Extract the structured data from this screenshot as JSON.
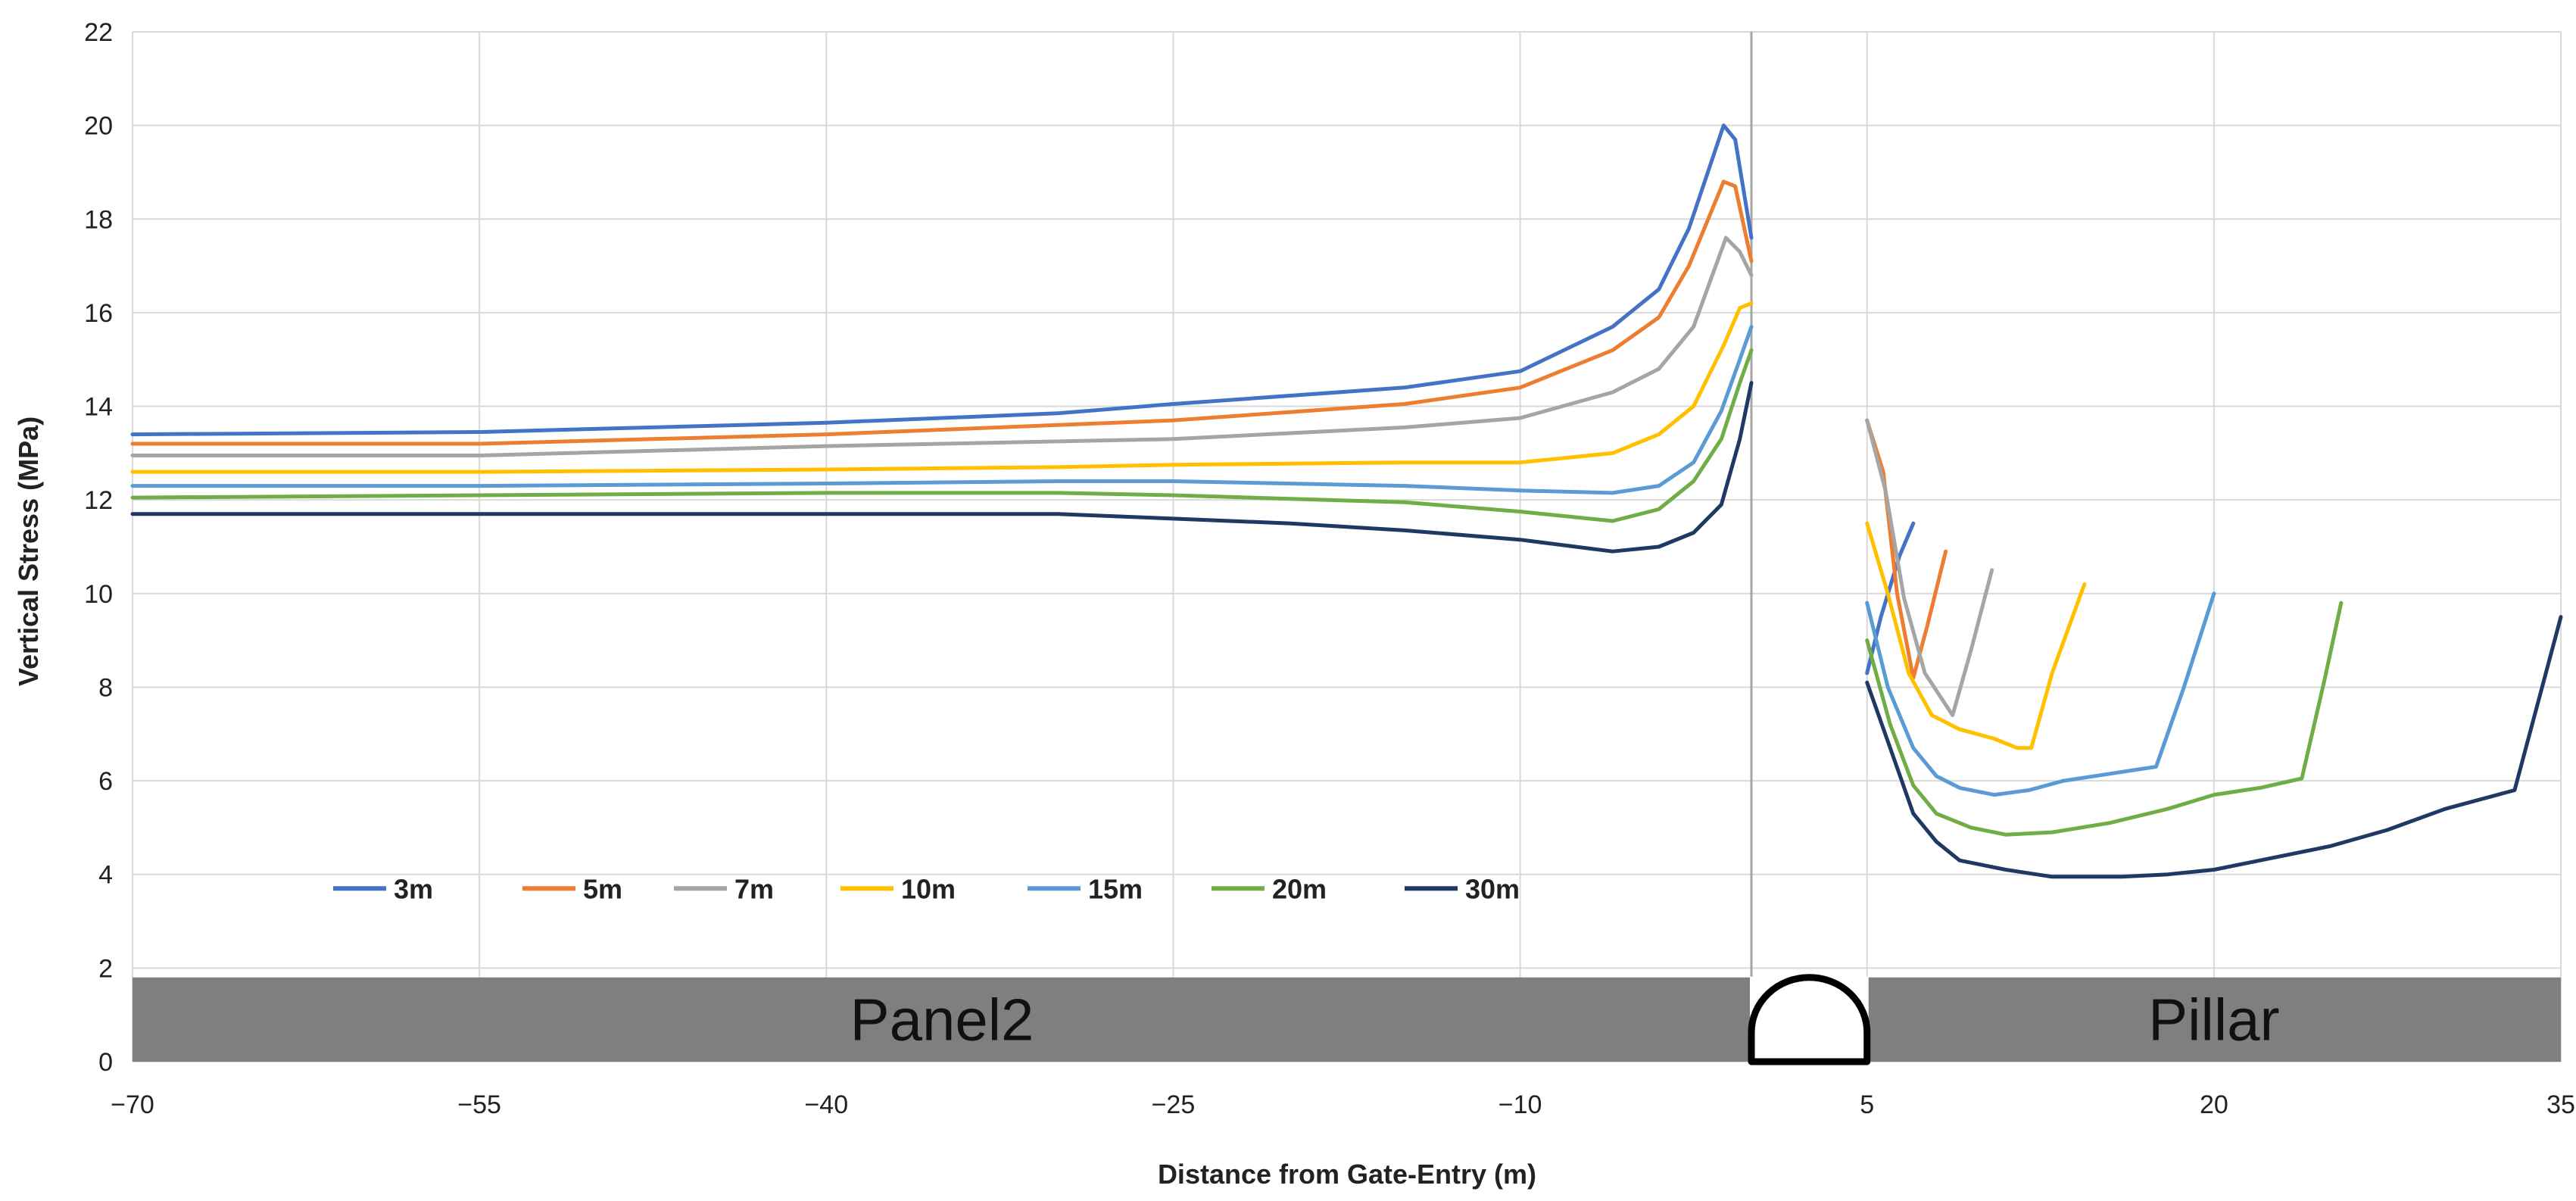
{
  "chart_data": {
    "type": "line",
    "title": "",
    "xlabel": "Distance from Gate-Entry (m)",
    "ylabel": "Vertical Stress (MPa)",
    "xlim": [
      -70,
      35
    ],
    "ylim": [
      0,
      22
    ],
    "x_ticks": [
      -70,
      -55,
      -40,
      -25,
      -10,
      5,
      20,
      35
    ],
    "x_tick_labels": [
      "−70",
      "−55",
      "−40",
      "−25",
      "−10",
      "5",
      "20",
      "35"
    ],
    "y_ticks": [
      0,
      2,
      4,
      6,
      8,
      10,
      12,
      14,
      16,
      18,
      20,
      22
    ],
    "y_tick_labels": [
      "0",
      "2",
      "4",
      "6",
      "8",
      "10",
      "12",
      "14",
      "16",
      "18",
      "20",
      "22"
    ],
    "grid": true,
    "legend_position": "bottom-left",
    "regions": [
      {
        "label": "Panel2",
        "from": -70,
        "to": 0
      },
      {
        "label": "Pillar",
        "from": 5,
        "to": 35
      }
    ],
    "gate_entry": {
      "from": 0,
      "to": 5
    },
    "series": [
      {
        "name": "3m",
        "color": "#4472C4",
        "panel": [
          [
            -70,
            13.4
          ],
          [
            -55,
            13.45
          ],
          [
            -40,
            13.65
          ],
          [
            -30,
            13.85
          ],
          [
            -25,
            14.05
          ],
          [
            -15,
            14.4
          ],
          [
            -10,
            14.75
          ],
          [
            -6,
            15.7
          ],
          [
            -4,
            16.5
          ],
          [
            -2.7,
            17.8
          ],
          [
            -1.2,
            20.0
          ],
          [
            -0.7,
            19.7
          ],
          [
            0,
            17.6
          ]
        ],
        "pillar": [
          [
            5,
            8.3
          ],
          [
            5.6,
            9.5
          ],
          [
            6.4,
            10.8
          ],
          [
            7,
            11.5
          ]
        ]
      },
      {
        "name": "5m",
        "color": "#ED7D31",
        "panel": [
          [
            -70,
            13.2
          ],
          [
            -55,
            13.2
          ],
          [
            -40,
            13.4
          ],
          [
            -30,
            13.6
          ],
          [
            -25,
            13.7
          ],
          [
            -15,
            14.05
          ],
          [
            -10,
            14.4
          ],
          [
            -6,
            15.2
          ],
          [
            -4,
            15.9
          ],
          [
            -2.7,
            17.0
          ],
          [
            -1.2,
            18.8
          ],
          [
            -0.7,
            18.7
          ],
          [
            0,
            17.1
          ]
        ],
        "pillar": [
          [
            5,
            13.7
          ],
          [
            5.7,
            12.6
          ],
          [
            6.3,
            10.0
          ],
          [
            7,
            8.2
          ],
          [
            7.6,
            9.3
          ],
          [
            8.4,
            10.9
          ]
        ]
      },
      {
        "name": "7m",
        "color": "#A5A5A5",
        "panel": [
          [
            -70,
            12.95
          ],
          [
            -55,
            12.95
          ],
          [
            -40,
            13.15
          ],
          [
            -30,
            13.25
          ],
          [
            -25,
            13.3
          ],
          [
            -15,
            13.55
          ],
          [
            -10,
            13.75
          ],
          [
            -6,
            14.3
          ],
          [
            -4,
            14.8
          ],
          [
            -2.5,
            15.7
          ],
          [
            -1.1,
            17.6
          ],
          [
            -0.5,
            17.3
          ],
          [
            0,
            16.8
          ]
        ],
        "pillar": [
          [
            5,
            13.7
          ],
          [
            5.8,
            12.2
          ],
          [
            6.6,
            9.9
          ],
          [
            7.5,
            8.3
          ],
          [
            8.7,
            7.4
          ],
          [
            9.5,
            8.8
          ],
          [
            10.4,
            10.5
          ]
        ]
      },
      {
        "name": "10m",
        "color": "#FFC000",
        "panel": [
          [
            -70,
            12.6
          ],
          [
            -55,
            12.6
          ],
          [
            -40,
            12.65
          ],
          [
            -30,
            12.7
          ],
          [
            -25,
            12.75
          ],
          [
            -15,
            12.8
          ],
          [
            -10,
            12.8
          ],
          [
            -6,
            13.0
          ],
          [
            -4,
            13.4
          ],
          [
            -2.5,
            14.0
          ],
          [
            -1.2,
            15.3
          ],
          [
            -0.5,
            16.1
          ],
          [
            0,
            16.2
          ]
        ],
        "pillar": [
          [
            5,
            11.5
          ],
          [
            5.9,
            10.0
          ],
          [
            6.8,
            8.3
          ],
          [
            7.8,
            7.4
          ],
          [
            9,
            7.1
          ],
          [
            10.5,
            6.9
          ],
          [
            11.5,
            6.7
          ],
          [
            12.1,
            6.7
          ],
          [
            13,
            8.3
          ],
          [
            14.4,
            10.2
          ]
        ]
      },
      {
        "name": "15m",
        "color": "#5B9BD5",
        "panel": [
          [
            -70,
            12.3
          ],
          [
            -55,
            12.3
          ],
          [
            -40,
            12.35
          ],
          [
            -30,
            12.4
          ],
          [
            -25,
            12.4
          ],
          [
            -15,
            12.3
          ],
          [
            -10,
            12.2
          ],
          [
            -6,
            12.15
          ],
          [
            -4,
            12.3
          ],
          [
            -2.5,
            12.8
          ],
          [
            -1.3,
            13.9
          ],
          [
            -0.5,
            15.0
          ],
          [
            0,
            15.7
          ]
        ],
        "pillar": [
          [
            5,
            9.8
          ],
          [
            5.9,
            8.0
          ],
          [
            7,
            6.7
          ],
          [
            8,
            6.1
          ],
          [
            9,
            5.85
          ],
          [
            10.5,
            5.7
          ],
          [
            12,
            5.8
          ],
          [
            13.5,
            6.0
          ],
          [
            15.5,
            6.15
          ],
          [
            17.5,
            6.3
          ],
          [
            18.7,
            8.0
          ],
          [
            20,
            10.0
          ]
        ]
      },
      {
        "name": "20m",
        "color": "#70AD47",
        "panel": [
          [
            -70,
            12.05
          ],
          [
            -55,
            12.1
          ],
          [
            -40,
            12.15
          ],
          [
            -30,
            12.15
          ],
          [
            -25,
            12.1
          ],
          [
            -15,
            11.95
          ],
          [
            -10,
            11.75
          ],
          [
            -6,
            11.55
          ],
          [
            -4,
            11.8
          ],
          [
            -2.5,
            12.4
          ],
          [
            -1.3,
            13.3
          ],
          [
            -0.5,
            14.5
          ],
          [
            0,
            15.2
          ]
        ],
        "pillar": [
          [
            5,
            9.0
          ],
          [
            6,
            7.2
          ],
          [
            7,
            5.9
          ],
          [
            8,
            5.3
          ],
          [
            9.5,
            5.0
          ],
          [
            11,
            4.85
          ],
          [
            13,
            4.9
          ],
          [
            15.5,
            5.1
          ],
          [
            18,
            5.4
          ],
          [
            20,
            5.7
          ],
          [
            22,
            5.85
          ],
          [
            23.8,
            6.05
          ],
          [
            24.8,
            8.2
          ],
          [
            25.5,
            9.8
          ]
        ]
      },
      {
        "name": "30m",
        "color": "#203864",
        "panel": [
          [
            -70,
            11.7
          ],
          [
            -55,
            11.7
          ],
          [
            -40,
            11.7
          ],
          [
            -30,
            11.7
          ],
          [
            -25,
            11.6
          ],
          [
            -20,
            11.5
          ],
          [
            -15,
            11.35
          ],
          [
            -10,
            11.15
          ],
          [
            -6,
            10.9
          ],
          [
            -4,
            11.0
          ],
          [
            -2.5,
            11.3
          ],
          [
            -1.3,
            11.9
          ],
          [
            -0.5,
            13.3
          ],
          [
            0,
            14.5
          ]
        ],
        "pillar": [
          [
            5,
            8.1
          ],
          [
            6,
            6.7
          ],
          [
            7,
            5.3
          ],
          [
            8,
            4.7
          ],
          [
            9,
            4.3
          ],
          [
            11,
            4.1
          ],
          [
            13,
            3.95
          ],
          [
            16,
            3.95
          ],
          [
            18,
            4.0
          ],
          [
            20,
            4.1
          ],
          [
            22,
            4.3
          ],
          [
            25,
            4.6
          ],
          [
            27.5,
            4.95
          ],
          [
            30,
            5.4
          ],
          [
            33,
            5.8
          ],
          [
            35,
            9.5
          ]
        ]
      }
    ]
  },
  "labels": {
    "panel2": "Panel2",
    "pillar": "Pillar",
    "xlabel": "Distance from Gate-Entry (m)",
    "ylabel": "Vertical Stress (MPa)"
  },
  "colors": {
    "band": "#7F7F7F",
    "grid": "#D9D9D9",
    "axis": "#BFBFBF",
    "entry_line": "#A6A6A6"
  }
}
